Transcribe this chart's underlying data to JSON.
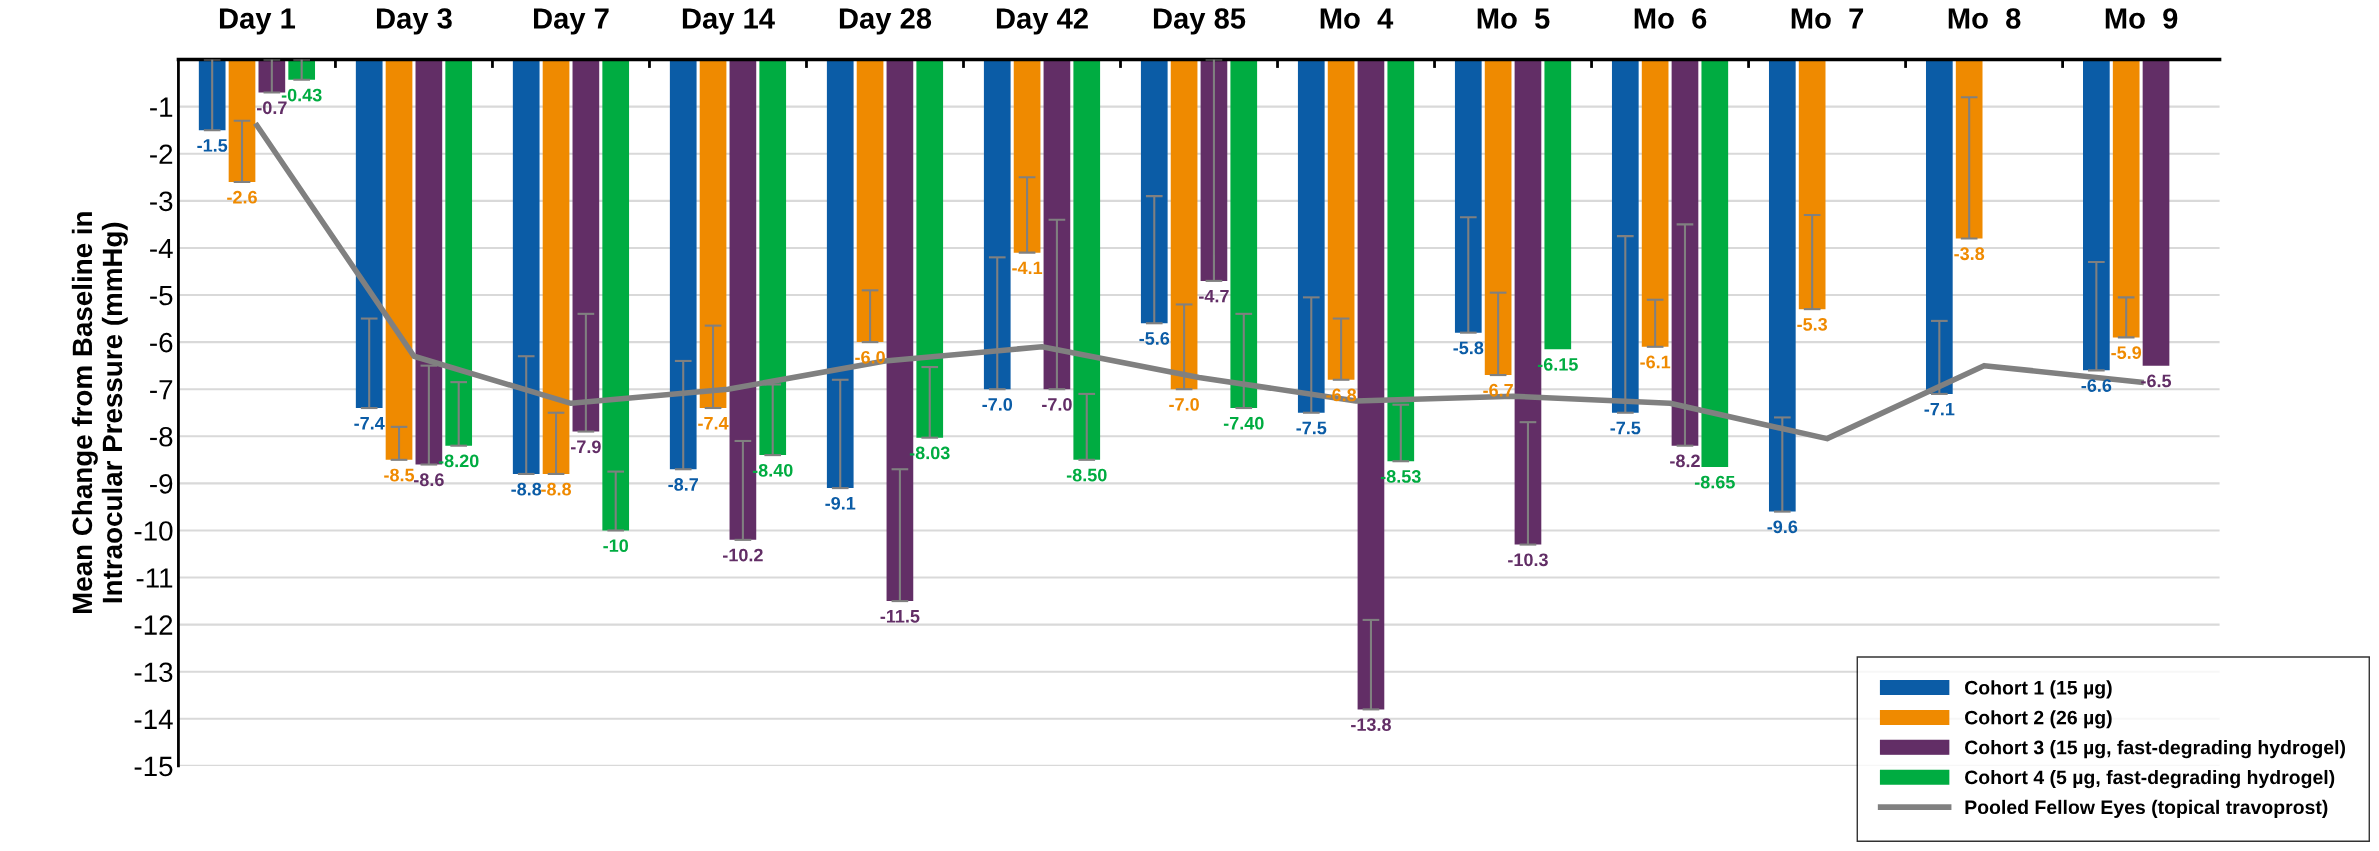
{
  "chart_data": {
    "type": "bar",
    "ylabel": "Mean Change from Baseline in\nIntraocular Pressure (mmHg)",
    "categories": [
      "Day 1",
      "Day 3",
      "Day 7",
      "Day 14",
      "Day 28",
      "Day 42",
      "Day 85",
      "Mo  4",
      "Mo  5",
      "Mo  6",
      "Mo  7",
      "Mo  8",
      "Mo  9"
    ],
    "ylim": [
      -15,
      0
    ],
    "yticks": [
      -15,
      -14,
      -13,
      -12,
      -11,
      -10,
      -9,
      -8,
      -7,
      -6,
      -5,
      -4,
      -3,
      -2,
      -1
    ],
    "grid": "y",
    "legend": "bottom right",
    "series": [
      {
        "name": "Cohort 1 (15 µg)",
        "color": "#0b5ca6",
        "values": [
          -1.5,
          -7.4,
          -8.8,
          -8.7,
          -9.1,
          -7.0,
          -5.6,
          -7.5,
          -5.8,
          -7.5,
          -9.6,
          -7.1,
          -6.6
        ],
        "value_labels": [
          "-1.5",
          "-7.4",
          "-8.8",
          "-8.7",
          "-9.1",
          "-7.0",
          "-5.6",
          "-7.5",
          "-5.8",
          "-7.5",
          "-9.6",
          "-7.1",
          "-6.6"
        ],
        "errors": [
          [
            -1.5,
            0
          ],
          [
            -7.4,
            -5.5
          ],
          [
            -8.8,
            -6.3
          ],
          [
            -8.7,
            -6.4
          ],
          [
            -9.1,
            -6.8
          ],
          [
            -7.0,
            -4.2
          ],
          [
            -5.6,
            -2.9
          ],
          [
            -7.5,
            -5.05
          ],
          [
            -5.8,
            -3.35
          ],
          [
            -7.5,
            -3.75
          ],
          [
            -9.6,
            -7.6
          ],
          [
            -7.1,
            -5.55
          ],
          [
            -6.6,
            -4.3
          ]
        ]
      },
      {
        "name": "Cohort 2 (26 µg)",
        "color": "#ef8a00",
        "values": [
          -2.6,
          -8.5,
          -8.8,
          -7.4,
          -6.0,
          -4.1,
          -7.0,
          -6.8,
          -6.7,
          -6.1,
          -5.3,
          -3.8,
          -5.9
        ],
        "value_labels": [
          "-2.6",
          "-8.5",
          "-8.8",
          "-7.4",
          "-6.0",
          "-4.1",
          "-7.0",
          "-6.8",
          "-6.7",
          "-6.1",
          "-5.3",
          "-3.8",
          "-5.9"
        ],
        "errors": [
          [
            -2.6,
            -1.3
          ],
          [
            -8.5,
            -7.8
          ],
          [
            -8.8,
            -7.5
          ],
          [
            -7.4,
            -5.65
          ],
          [
            -6.0,
            -4.9
          ],
          [
            -4.1,
            -2.5
          ],
          [
            -7.0,
            -5.2
          ],
          [
            -6.8,
            -5.5
          ],
          [
            -6.7,
            -4.95
          ],
          [
            -6.1,
            -5.1
          ],
          [
            -5.3,
            -3.3
          ],
          [
            -3.8,
            -0.8
          ],
          [
            -5.9,
            -5.05
          ]
        ]
      },
      {
        "name": "Cohort 3 (15 µg, fast-degrading hydrogel)",
        "color": "#622e66",
        "values": [
          -0.7,
          -8.6,
          -7.9,
          -10.2,
          -11.5,
          -7.0,
          -4.7,
          -13.8,
          -10.3,
          -8.2,
          null,
          null,
          -6.5
        ],
        "value_labels": [
          "-0.7",
          "-8.6",
          "-7.9",
          "-10.2",
          "-11.5",
          "-7.0",
          "-4.7",
          "-13.8",
          "-10.3",
          "-8.2",
          null,
          null,
          "-6.5"
        ],
        "errors": [
          [
            -0.7,
            0
          ],
          [
            -8.6,
            -6.5
          ],
          [
            -7.9,
            -5.4
          ],
          [
            -10.2,
            -8.1
          ],
          [
            -11.5,
            -8.7
          ],
          [
            -7.0,
            -3.4
          ],
          [
            -4.7,
            0
          ],
          [
            -13.8,
            -11.9
          ],
          [
            -10.3,
            -7.7
          ],
          [
            -8.2,
            -3.5
          ],
          null,
          null,
          null
        ]
      },
      {
        "name": "Cohort 4 (5 µg, fast-degrading hydrogel)",
        "color": "#00ac41",
        "values": [
          -0.43,
          -8.2,
          -10,
          -8.4,
          -8.03,
          -8.5,
          -7.4,
          -8.53,
          -6.15,
          -8.65,
          null,
          null,
          null
        ],
        "value_labels": [
          "-0.43",
          "-8.20",
          "-10",
          "-8.40",
          "-8.03",
          "-8.50",
          "-7.40",
          "-8.53",
          "-6.15",
          "-8.65",
          null,
          null,
          null
        ],
        "errors": [
          [
            -0.43,
            0
          ],
          [
            -8.2,
            -6.85
          ],
          [
            -10,
            -8.75
          ],
          [
            -8.4,
            -6.9
          ],
          [
            -8.03,
            -6.53
          ],
          [
            -8.5,
            -7.1
          ],
          [
            -7.4,
            -5.4
          ],
          [
            -8.53,
            -7.33
          ],
          null,
          null,
          null,
          null,
          null
        ]
      },
      {
        "name": "Pooled Fellow Eyes (topical travoprost)",
        "type": "line",
        "color": "#808080",
        "marker": "none",
        "line_style": "solid",
        "values": [
          -1.4,
          -6.3,
          -7.3,
          -7.0,
          -6.4,
          -6.1,
          -6.75,
          -7.25,
          -7.15,
          -7.3,
          -8.05,
          -6.5,
          -6.85
        ]
      }
    ]
  }
}
